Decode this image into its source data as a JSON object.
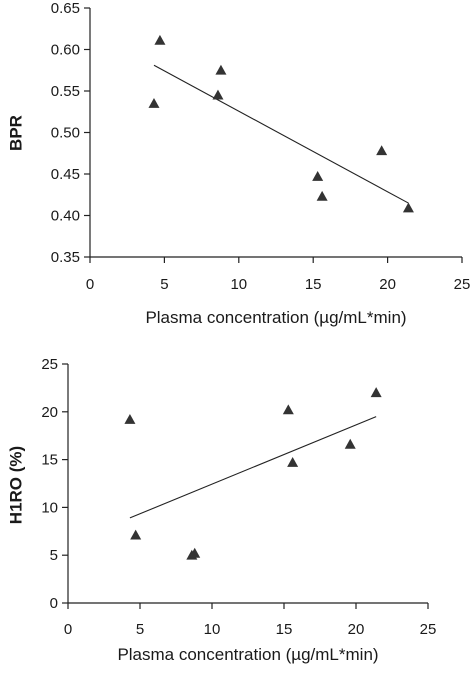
{
  "chart_data": [
    {
      "type": "scatter",
      "title": "",
      "xlabel": "Plasma concentration (µg/mL*min)",
      "ylabel": "BPR",
      "xlim": [
        0,
        25
      ],
      "ylim": [
        0.35,
        0.65
      ],
      "xticks": [
        "0",
        "5",
        "10",
        "15",
        "20",
        "25"
      ],
      "yticks": [
        "0.35",
        "0.40",
        "0.45",
        "0.50",
        "0.55",
        "0.60",
        "0.65"
      ],
      "points": [
        {
          "x": 4.3,
          "y": 0.535
        },
        {
          "x": 4.7,
          "y": 0.611
        },
        {
          "x": 8.6,
          "y": 0.545
        },
        {
          "x": 8.8,
          "y": 0.575
        },
        {
          "x": 15.3,
          "y": 0.447
        },
        {
          "x": 15.6,
          "y": 0.423
        },
        {
          "x": 19.6,
          "y": 0.478
        },
        {
          "x": 21.4,
          "y": 0.409
        }
      ],
      "trendline": {
        "x1": 4.3,
        "y1": 0.581,
        "x2": 21.4,
        "y2": 0.415
      },
      "grid": false,
      "marker": "triangle",
      "color": "#333333"
    },
    {
      "type": "scatter",
      "title": "",
      "xlabel": "Plasma concentration (µg/mL*min)",
      "ylabel": "H1RO (%)",
      "xlim": [
        0,
        25
      ],
      "ylim": [
        0,
        25
      ],
      "xticks": [
        "0",
        "5",
        "10",
        "15",
        "20",
        "25"
      ],
      "yticks": [
        "0",
        "5",
        "10",
        "15",
        "20",
        "25"
      ],
      "points": [
        {
          "x": 4.3,
          "y": 19.2
        },
        {
          "x": 4.7,
          "y": 7.1
        },
        {
          "x": 8.6,
          "y": 5.0
        },
        {
          "x": 8.8,
          "y": 5.2
        },
        {
          "x": 15.3,
          "y": 20.2
        },
        {
          "x": 15.6,
          "y": 14.7
        },
        {
          "x": 19.6,
          "y": 16.6
        },
        {
          "x": 21.4,
          "y": 22.0
        }
      ],
      "trendline": {
        "x1": 4.3,
        "y1": 8.9,
        "x2": 21.4,
        "y2": 19.5
      },
      "grid": false,
      "marker": "triangle",
      "color": "#333333"
    }
  ]
}
